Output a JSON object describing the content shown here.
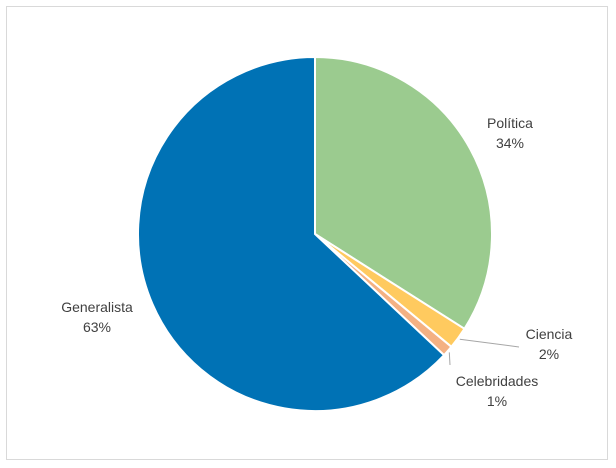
{
  "chart_data": {
    "type": "pie",
    "title": "",
    "categories": [
      "Política",
      "Ciencia",
      "Celebridades",
      "Generalista"
    ],
    "values": [
      34,
      2,
      1,
      63
    ],
    "value_labels": [
      "34%",
      "2%",
      "1%",
      "63%"
    ],
    "colors": [
      "#9bcb8f",
      "#ffca5f",
      "#f4b183",
      "#0072b5"
    ],
    "start_angle_deg": 0,
    "direction": "clockwise",
    "legend": "none",
    "data_labels": "outside"
  }
}
